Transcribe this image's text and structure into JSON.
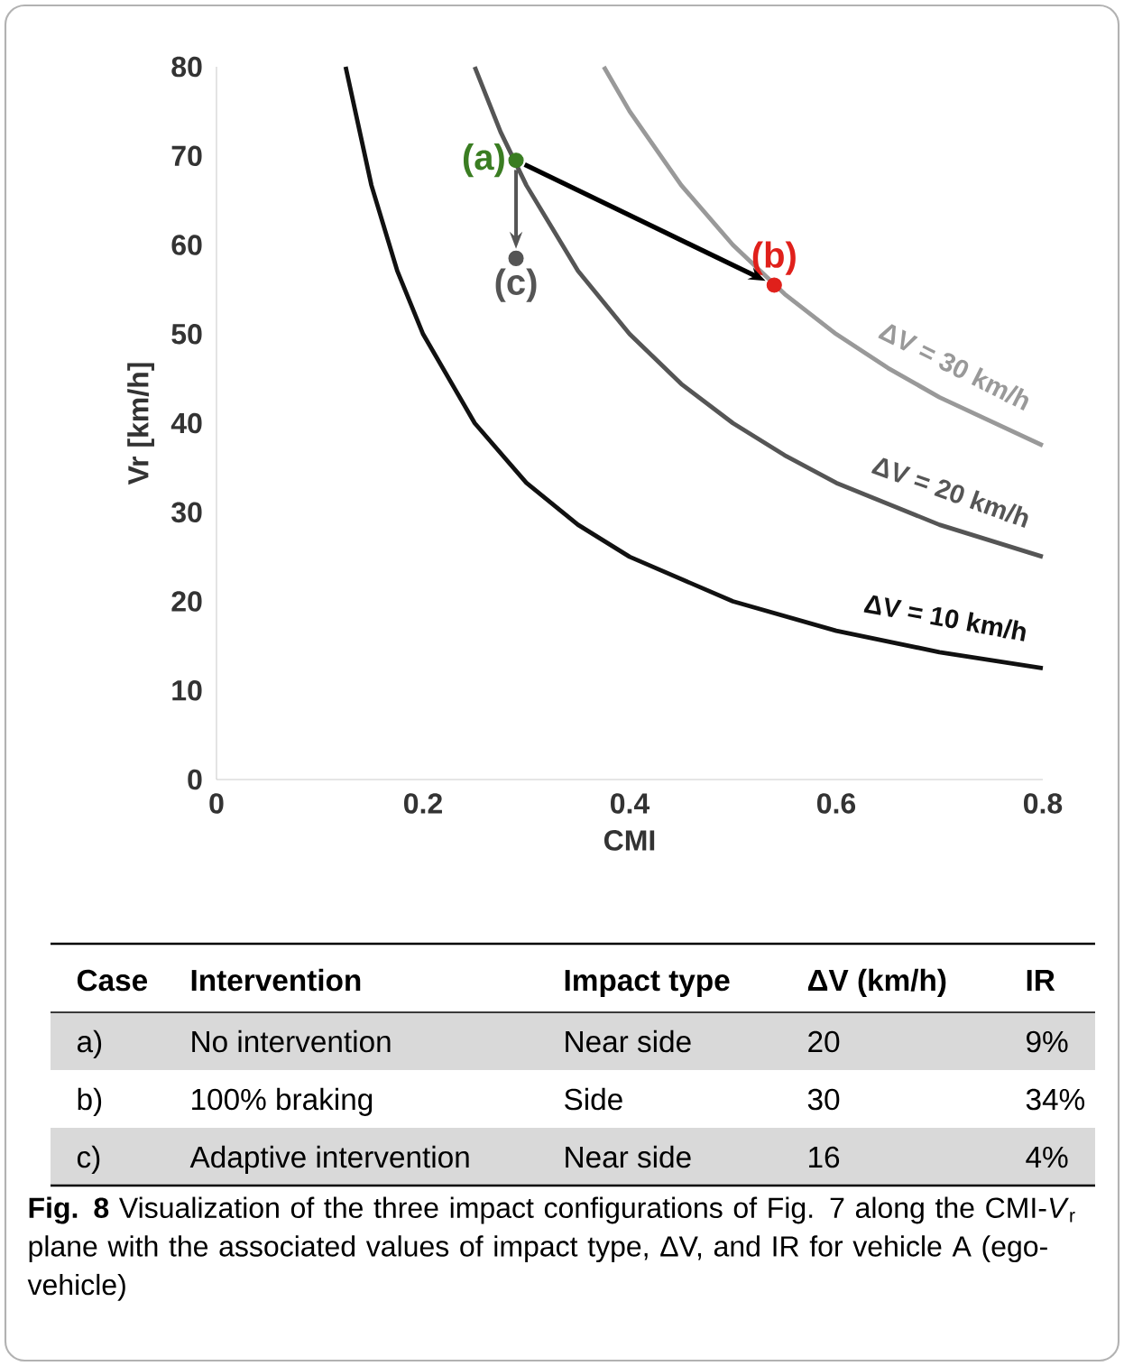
{
  "chart_data": {
    "type": "line",
    "xlabel": "CMI",
    "ylabel": "Vr [km/h]",
    "xlim": [
      0,
      0.8
    ],
    "xticks": [
      0,
      0.2,
      0.4,
      0.6,
      0.8
    ],
    "ylim": [
      0,
      80
    ],
    "yticks": [
      0,
      10,
      20,
      30,
      40,
      50,
      60,
      70,
      80
    ],
    "series": [
      {
        "name": "ΔV = 10 km/h",
        "color": "#111111",
        "x": [
          0.125,
          0.15,
          0.175,
          0.2,
          0.25,
          0.3,
          0.35,
          0.4,
          0.5,
          0.6,
          0.7,
          0.8
        ],
        "values": [
          80,
          66.7,
          57.1,
          50,
          40,
          33.3,
          28.6,
          25,
          20,
          16.7,
          14.3,
          12.5
        ]
      },
      {
        "name": "ΔV = 20 km/h",
        "color": "#555555",
        "x": [
          0.25,
          0.275,
          0.3,
          0.35,
          0.4,
          0.45,
          0.5,
          0.55,
          0.6,
          0.7,
          0.8
        ],
        "values": [
          80,
          72.7,
          66.7,
          57.1,
          50,
          44.4,
          40,
          36.4,
          33.3,
          28.6,
          25
        ]
      },
      {
        "name": "ΔV = 30 km/h",
        "color": "#999999",
        "x": [
          0.375,
          0.4,
          0.45,
          0.5,
          0.55,
          0.6,
          0.65,
          0.7,
          0.8
        ],
        "values": [
          80,
          75,
          66.7,
          60,
          54.5,
          50,
          46.2,
          42.9,
          37.5
        ]
      },
      {
        "name": "(a)",
        "type": "scatter",
        "color": "#3a7d22",
        "x": [
          0.29
        ],
        "values": [
          69.5
        ]
      },
      {
        "name": "(b)",
        "type": "scatter",
        "color": "#e0201b",
        "x": [
          0.54
        ],
        "values": [
          55.5
        ]
      },
      {
        "name": "(c)",
        "type": "scatter",
        "color": "#555555",
        "x": [
          0.29
        ],
        "values": [
          58.5
        ]
      }
    ],
    "annotations": [
      "**Fig. 8**  Visualization of the three impact configurations of Fig. 7 along the CMI-*V*$_{r}$ plane with the associated values of impact type, ΔV, and IR for vehicle A (ego-vehicle)",
      "Case",
      "Intervention",
      "Impact type",
      "ΔV (km/h)",
      "IR",
      "a)",
      "No intervention",
      "Near side",
      "20",
      "9%",
      "b)",
      "100% braking",
      "Side",
      "30",
      "34%",
      "c)",
      "Adaptive intervention",
      "Near side",
      "16",
      "4%"
    ]
  }
}
